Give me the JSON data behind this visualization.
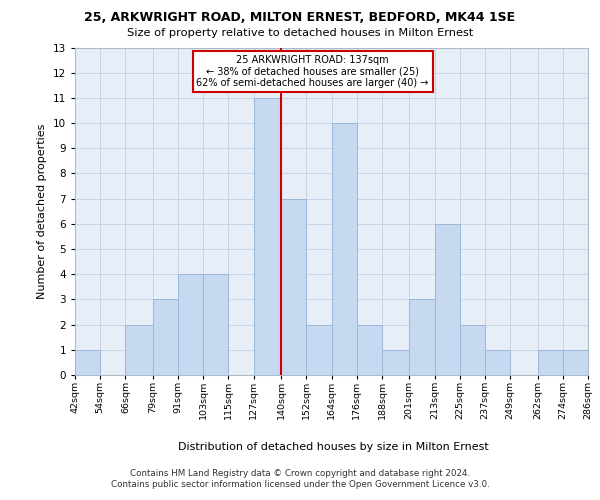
{
  "title_line1": "25, ARKWRIGHT ROAD, MILTON ERNEST, BEDFORD, MK44 1SE",
  "title_line2": "Size of property relative to detached houses in Milton Ernest",
  "xlabel": "Distribution of detached houses by size in Milton Ernest",
  "ylabel": "Number of detached properties",
  "bin_edges": [
    42,
    54,
    66,
    79,
    91,
    103,
    115,
    127,
    140,
    152,
    164,
    176,
    188,
    201,
    213,
    225,
    237,
    249,
    262,
    274,
    286
  ],
  "bar_heights": [
    1,
    0,
    2,
    3,
    4,
    4,
    0,
    11,
    7,
    2,
    10,
    2,
    1,
    3,
    6,
    2,
    1,
    0,
    1,
    1
  ],
  "bar_color": "#c6d9f0",
  "bar_edge_color": "#9ab8d8",
  "property_line_x": 140,
  "property_line_color": "#cc0000",
  "annotation_line1": "25 ARKWRIGHT ROAD: 137sqm",
  "annotation_line2": "← 38% of detached houses are smaller (25)",
  "annotation_line3": "62% of semi-detached houses are larger (40) →",
  "annotation_box_color": "white",
  "annotation_box_edge_color": "#cc0000",
  "ylim_max": 13,
  "yticks": [
    0,
    1,
    2,
    3,
    4,
    5,
    6,
    7,
    8,
    9,
    10,
    11,
    12,
    13
  ],
  "grid_color": "#c8d4e8",
  "background_color": "#e8eef8",
  "footer_text1": "Contains HM Land Registry data © Crown copyright and database right 2024.",
  "footer_text2": "Contains public sector information licensed under the Open Government Licence v3.0.",
  "bin_labels": [
    "42sqm",
    "54sqm",
    "66sqm",
    "79sqm",
    "91sqm",
    "103sqm",
    "115sqm",
    "127sqm",
    "140sqm",
    "152sqm",
    "164sqm",
    "176sqm",
    "188sqm",
    "201sqm",
    "213sqm",
    "225sqm",
    "237sqm",
    "249sqm",
    "262sqm",
    "274sqm",
    "286sqm"
  ]
}
